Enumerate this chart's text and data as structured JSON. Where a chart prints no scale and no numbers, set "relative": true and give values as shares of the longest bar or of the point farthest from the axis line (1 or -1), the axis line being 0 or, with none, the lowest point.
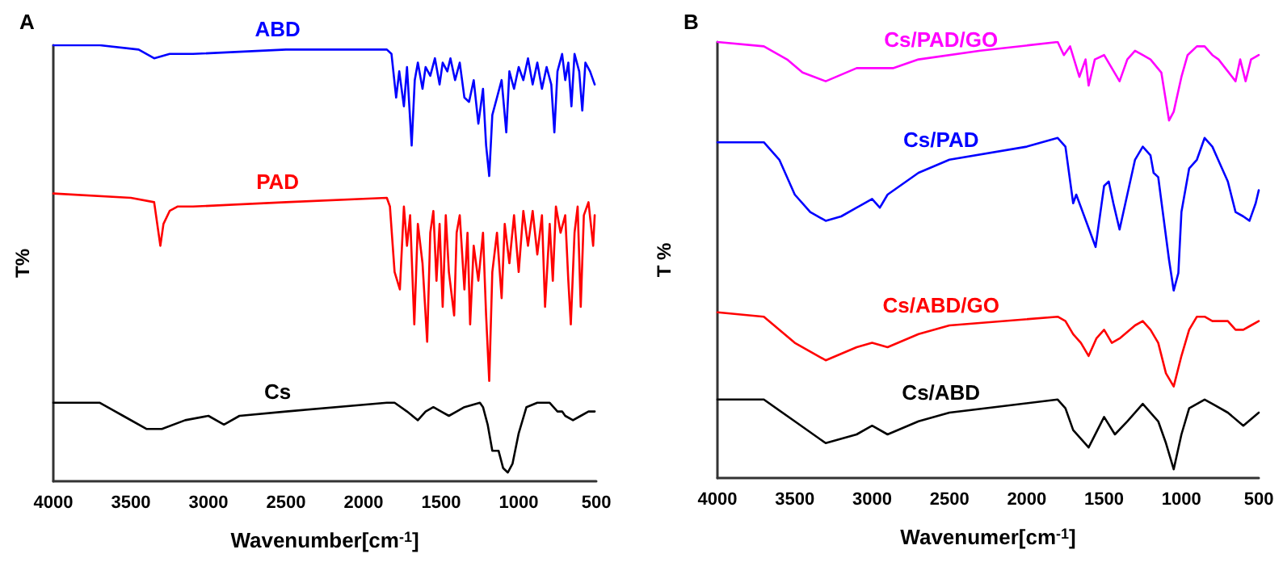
{
  "chart_data": [
    {
      "type": "line",
      "title": "A",
      "xlabel": "Wavenumber[cm$^{-1}$]",
      "ylabel": "T%",
      "relative": true,
      "xlim": [
        4000,
        500
      ],
      "xticks": [
        4000,
        3500,
        3000,
        2500,
        2000,
        1500,
        1000,
        500
      ],
      "tick_labels": "x",
      "grid": false,
      "legend": false,
      "marker": "none",
      "line_style": "solid",
      "series": [
        {
          "name": "ABD",
          "color": "#0000ff",
          "x": [
            4000,
            3700,
            3450,
            3350,
            3250,
            3100,
            2500,
            1850,
            1820,
            1790,
            1770,
            1740,
            1720,
            1690,
            1670,
            1650,
            1620,
            1600,
            1570,
            1540,
            1510,
            1490,
            1460,
            1440,
            1410,
            1380,
            1350,
            1320,
            1290,
            1260,
            1230,
            1210,
            1190,
            1170,
            1140,
            1110,
            1080,
            1060,
            1030,
            1000,
            970,
            940,
            910,
            880,
            850,
            820,
            790,
            770,
            750,
            720,
            700,
            680,
            660,
            640,
            610,
            590,
            570,
            540,
            510
          ],
          "values": [
            1.0,
            1.0,
            0.99,
            0.97,
            0.98,
            0.98,
            0.99,
            0.99,
            0.98,
            0.88,
            0.94,
            0.86,
            0.95,
            0.77,
            0.92,
            0.96,
            0.9,
            0.95,
            0.93,
            0.97,
            0.91,
            0.96,
            0.94,
            0.97,
            0.92,
            0.96,
            0.88,
            0.87,
            0.92,
            0.82,
            0.9,
            0.77,
            0.7,
            0.84,
            0.88,
            0.92,
            0.8,
            0.94,
            0.9,
            0.95,
            0.92,
            0.97,
            0.91,
            0.96,
            0.9,
            0.95,
            0.91,
            0.8,
            0.94,
            0.98,
            0.92,
            0.96,
            0.86,
            0.98,
            0.94,
            0.85,
            0.96,
            0.94,
            0.91
          ]
        },
        {
          "name": "PAD",
          "color": "#ff0000",
          "x": [
            4000,
            3500,
            3350,
            3310,
            3290,
            3250,
            3200,
            3100,
            2500,
            1850,
            1830,
            1800,
            1766,
            1740,
            1720,
            1700,
            1673,
            1650,
            1620,
            1590,
            1570,
            1550,
            1530,
            1510,
            1490,
            1470,
            1450,
            1416,
            1400,
            1380,
            1350,
            1330,
            1313,
            1290,
            1260,
            1230,
            1210,
            1190,
            1170,
            1140,
            1110,
            1090,
            1060,
            1030,
            1000,
            970,
            940,
            910,
            880,
            850,
            830,
            800,
            780,
            760,
            730,
            700,
            680,
            664,
            640,
            620,
            600,
            580,
            550,
            520,
            510
          ],
          "values": [
            0.66,
            0.65,
            0.64,
            0.54,
            0.59,
            0.62,
            0.63,
            0.63,
            0.64,
            0.65,
            0.63,
            0.48,
            0.44,
            0.63,
            0.54,
            0.61,
            0.36,
            0.59,
            0.5,
            0.32,
            0.57,
            0.62,
            0.46,
            0.59,
            0.4,
            0.61,
            0.48,
            0.38,
            0.57,
            0.61,
            0.44,
            0.57,
            0.36,
            0.54,
            0.46,
            0.57,
            0.38,
            0.23,
            0.48,
            0.57,
            0.42,
            0.59,
            0.5,
            0.61,
            0.48,
            0.62,
            0.54,
            0.62,
            0.52,
            0.61,
            0.4,
            0.59,
            0.46,
            0.63,
            0.57,
            0.61,
            0.46,
            0.36,
            0.57,
            0.63,
            0.4,
            0.61,
            0.64,
            0.54,
            0.61
          ]
        },
        {
          "name": "Cs",
          "color": "#000000",
          "x": [
            4000,
            3700,
            3550,
            3400,
            3300,
            3150,
            3000,
            2900,
            2800,
            2500,
            1850,
            1800,
            1720,
            1650,
            1600,
            1550,
            1500,
            1450,
            1400,
            1350,
            1250,
            1230,
            1200,
            1170,
            1130,
            1100,
            1070,
            1040,
            1000,
            950,
            880,
            800,
            750,
            720,
            700,
            650,
            600,
            550,
            510
          ],
          "values": [
            0.18,
            0.18,
            0.15,
            0.12,
            0.12,
            0.14,
            0.15,
            0.13,
            0.15,
            0.16,
            0.18,
            0.18,
            0.16,
            0.14,
            0.16,
            0.17,
            0.16,
            0.15,
            0.16,
            0.17,
            0.18,
            0.17,
            0.13,
            0.07,
            0.07,
            0.03,
            0.02,
            0.04,
            0.11,
            0.17,
            0.18,
            0.18,
            0.16,
            0.16,
            0.15,
            0.14,
            0.15,
            0.16,
            0.16
          ]
        }
      ]
    },
    {
      "type": "line",
      "title": "B",
      "xlabel": "Wavenumer[cm$^{-1}$]",
      "ylabel": "T %",
      "relative": true,
      "xlim": [
        4000,
        500
      ],
      "xticks": [
        4000,
        3500,
        3000,
        2500,
        2000,
        1500,
        1000,
        500
      ],
      "tick_labels": "x",
      "grid": false,
      "legend": false,
      "marker": "none",
      "line_style": "solid",
      "series": [
        {
          "name": "Cs/PAD/GO",
          "color": "#ff00ff",
          "x": [
            4000,
            3700,
            3550,
            3450,
            3300,
            3100,
            2990,
            2865,
            2700,
            2300,
            1800,
            1760,
            1720,
            1660,
            1620,
            1600,
            1560,
            1500,
            1400,
            1350,
            1300,
            1250,
            1200,
            1130,
            1080,
            1050,
            1000,
            960,
            900,
            850,
            800,
            760,
            650,
            620,
            585,
            550,
            500
          ],
          "values": [
            1.0,
            0.99,
            0.96,
            0.93,
            0.91,
            0.94,
            0.94,
            0.94,
            0.96,
            0.98,
            1.0,
            0.97,
            0.99,
            0.92,
            0.96,
            0.9,
            0.96,
            0.97,
            0.91,
            0.96,
            0.98,
            0.97,
            0.96,
            0.93,
            0.82,
            0.84,
            0.92,
            0.97,
            0.99,
            0.99,
            0.97,
            0.96,
            0.91,
            0.96,
            0.91,
            0.96,
            0.97
          ]
        },
        {
          "name": "Cs/PAD",
          "color": "#0000ff",
          "x": [
            4000,
            3700,
            3600,
            3500,
            3400,
            3300,
            3200,
            3100,
            3000,
            2950,
            2900,
            2700,
            2500,
            2000,
            1800,
            1750,
            1700,
            1680,
            1555,
            1500,
            1470,
            1440,
            1400,
            1350,
            1300,
            1250,
            1200,
            1180,
            1150,
            1080,
            1050,
            1020,
            1000,
            950,
            900,
            850,
            800,
            750,
            700,
            650,
            600,
            560,
            520,
            500
          ],
          "values": [
            0.77,
            0.77,
            0.73,
            0.65,
            0.61,
            0.59,
            0.6,
            0.62,
            0.64,
            0.62,
            0.65,
            0.7,
            0.73,
            0.76,
            0.78,
            0.76,
            0.63,
            0.65,
            0.53,
            0.67,
            0.68,
            0.63,
            0.57,
            0.65,
            0.73,
            0.76,
            0.74,
            0.7,
            0.69,
            0.5,
            0.43,
            0.47,
            0.61,
            0.71,
            0.73,
            0.78,
            0.76,
            0.72,
            0.68,
            0.61,
            0.6,
            0.59,
            0.63,
            0.66
          ]
        },
        {
          "name": "Cs/ABD/GO",
          "color": "#ff0000",
          "x": [
            4000,
            3700,
            3500,
            3300,
            3100,
            3000,
            2900,
            2700,
            2500,
            1800,
            1750,
            1700,
            1650,
            1600,
            1550,
            1500,
            1450,
            1400,
            1300,
            1250,
            1200,
            1150,
            1100,
            1050,
            1000,
            950,
            900,
            850,
            800,
            700,
            650,
            600,
            550,
            500
          ],
          "values": [
            0.38,
            0.37,
            0.31,
            0.27,
            0.3,
            0.31,
            0.3,
            0.33,
            0.35,
            0.37,
            0.36,
            0.33,
            0.31,
            0.28,
            0.32,
            0.34,
            0.31,
            0.32,
            0.35,
            0.36,
            0.34,
            0.31,
            0.24,
            0.21,
            0.28,
            0.34,
            0.37,
            0.37,
            0.36,
            0.36,
            0.34,
            0.34,
            0.35,
            0.36
          ]
        },
        {
          "name": "Cs/ABD",
          "color": "#000000",
          "x": [
            4000,
            3700,
            3500,
            3300,
            3100,
            3000,
            2900,
            2700,
            2500,
            1800,
            1750,
            1700,
            1600,
            1500,
            1430,
            1350,
            1250,
            1150,
            1100,
            1050,
            1000,
            950,
            850,
            800,
            700,
            600,
            500
          ],
          "values": [
            0.18,
            0.18,
            0.13,
            0.08,
            0.1,
            0.12,
            0.1,
            0.13,
            0.15,
            0.18,
            0.16,
            0.11,
            0.07,
            0.14,
            0.1,
            0.13,
            0.17,
            0.13,
            0.08,
            0.02,
            0.1,
            0.16,
            0.18,
            0.17,
            0.15,
            0.12,
            0.15
          ]
        }
      ]
    }
  ]
}
